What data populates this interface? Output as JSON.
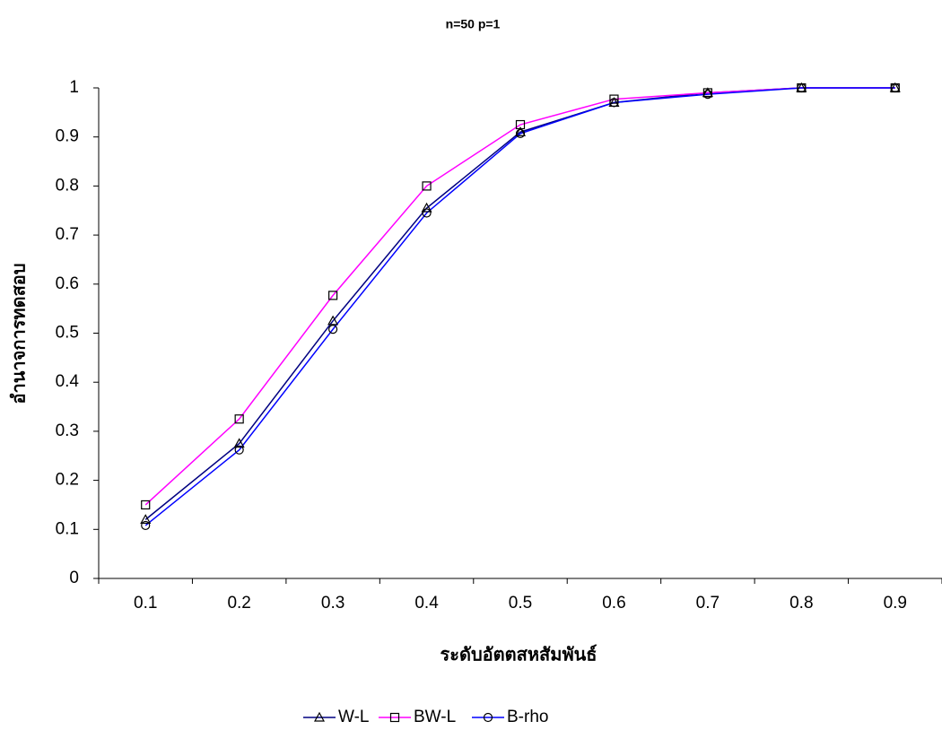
{
  "chart_data": {
    "type": "line",
    "title": "n=50 p=1",
    "x_label": "ระดับอัตตสหสัมพันธ์",
    "y_label": "อำนาจการทดสอบ",
    "categories": [
      0.1,
      0.2,
      0.3,
      0.4,
      0.5,
      0.6,
      0.7,
      0.8,
      0.9
    ],
    "series": [
      {
        "name": "W-L",
        "color": "#000080",
        "marker": "triangle",
        "values": [
          0.12,
          0.275,
          0.525,
          0.755,
          0.91,
          0.97,
          0.99,
          1.0,
          1.0
        ]
      },
      {
        "name": "BW-L",
        "color": "#ff00ff",
        "marker": "square",
        "values": [
          0.15,
          0.325,
          0.577,
          0.8,
          0.925,
          0.977,
          0.99,
          1.0,
          1.0
        ]
      },
      {
        "name": "B-rho",
        "color": "#0000ff",
        "marker": "circle",
        "values": [
          0.108,
          0.262,
          0.508,
          0.745,
          0.907,
          0.97,
          0.987,
          1.0,
          1.0
        ]
      }
    ],
    "ylim": [
      0,
      1
    ],
    "yticks": [
      0,
      0.1,
      0.2,
      0.3,
      0.4,
      0.5,
      0.6,
      0.7,
      0.8,
      0.9,
      1
    ],
    "legend": "bottom"
  }
}
